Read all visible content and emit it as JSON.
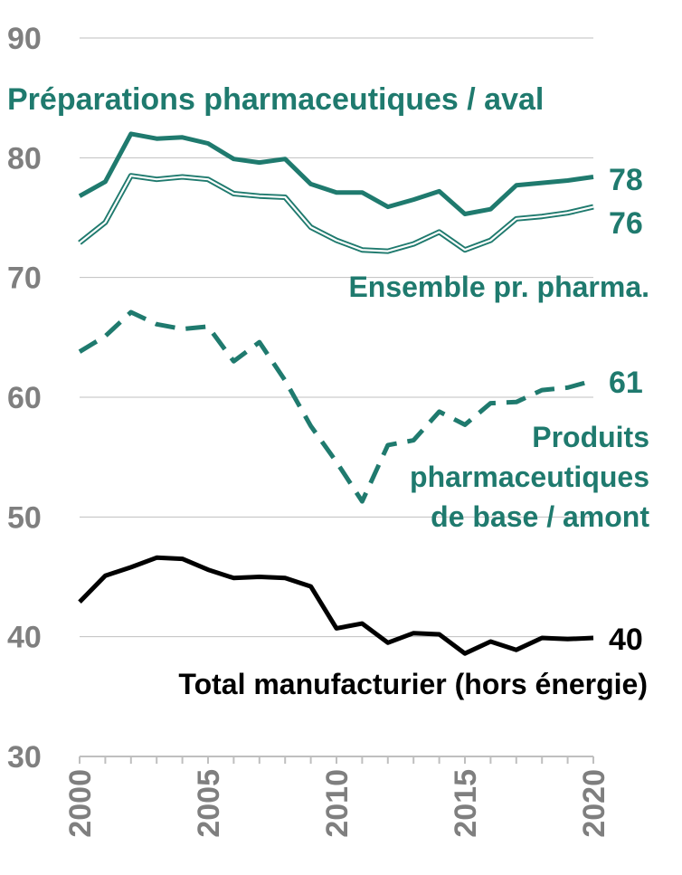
{
  "chart_data": {
    "type": "line",
    "title": "",
    "xlabel": "",
    "ylabel": "",
    "xlim": [
      2000,
      2020
    ],
    "ylim": [
      30,
      90
    ],
    "yticks": [
      "30",
      "40",
      "50",
      "60",
      "70",
      "80",
      "90"
    ],
    "xticks": [
      "2000",
      "2005",
      "2010",
      "2015",
      "2020"
    ],
    "grid": "horizontal",
    "x": [
      2000,
      2001,
      2002,
      2003,
      2004,
      2005,
      2006,
      2007,
      2008,
      2009,
      2010,
      2011,
      2012,
      2013,
      2014,
      2015,
      2016,
      2017,
      2018,
      2019,
      2020
    ],
    "series": [
      {
        "name": "Préparations pharmaceutiques / aval",
        "end_label": "78",
        "color": "#1f7a6e",
        "style": "solid",
        "values": [
          76.8,
          78.0,
          82.0,
          81.6,
          81.7,
          81.2,
          79.9,
          79.6,
          79.9,
          77.8,
          77.1,
          77.1,
          75.9,
          76.5,
          77.2,
          75.3,
          75.7,
          77.7,
          77.9,
          78.1,
          78.4
        ]
      },
      {
        "name": "Ensemble pr. pharma.",
        "end_label": "76",
        "color": "#1f7a6e",
        "style": "double",
        "values": [
          72.9,
          74.6,
          78.5,
          78.2,
          78.4,
          78.2,
          77.0,
          76.8,
          76.7,
          74.2,
          73.1,
          72.3,
          72.2,
          72.8,
          73.8,
          72.3,
          73.1,
          74.9,
          75.1,
          75.4,
          75.9
        ]
      },
      {
        "name": "Produits pharmaceutiques de base / amont",
        "end_label": "61",
        "color": "#1f7a6e",
        "style": "dashed",
        "values": [
          63.8,
          65.1,
          67.1,
          66.1,
          65.7,
          65.9,
          63.0,
          64.6,
          61.4,
          57.6,
          54.6,
          51.3,
          56.0,
          56.4,
          58.8,
          57.7,
          59.5,
          59.6,
          60.6,
          60.8,
          61.4
        ]
      },
      {
        "name": "Total manufacturier (hors énergie)",
        "end_label": "40",
        "color": "#000000",
        "style": "solid",
        "values": [
          42.9,
          45.1,
          45.8,
          46.6,
          46.5,
          45.6,
          44.9,
          45.0,
          44.9,
          44.2,
          40.7,
          41.1,
          39.5,
          40.3,
          40.2,
          38.6,
          39.6,
          38.9,
          39.9,
          39.8,
          39.9
        ]
      }
    ]
  }
}
